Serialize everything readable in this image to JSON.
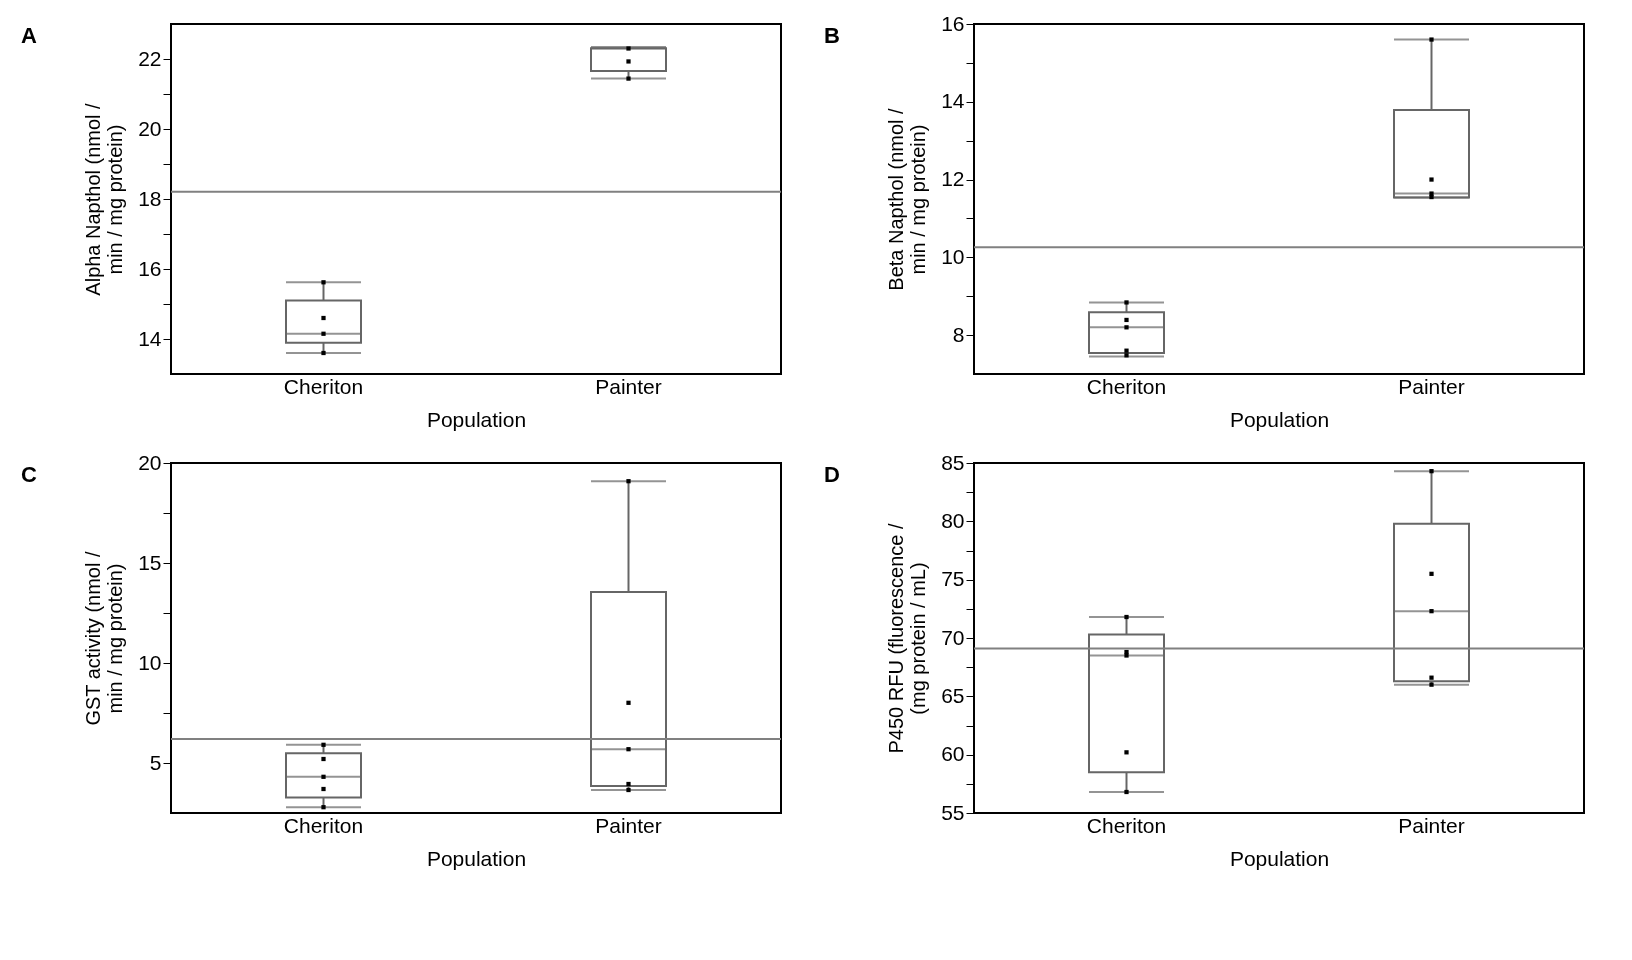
{
  "chart_data": [
    {
      "type": "box",
      "annotations": [
        "A"
      ],
      "xlabel": "Population",
      "ylabel": "Alpha Napthol (nmol / min / mg protein)",
      "categories": [
        "Cheriton",
        "Painter"
      ],
      "color": "#666666",
      "marker": "square",
      "boxes": [
        {
          "low": 13.6,
          "q1": 13.89,
          "median": 14.15,
          "q3": 15.1,
          "high": 15.62
        },
        {
          "low": 21.44,
          "q1": 21.66,
          "median": 22.3,
          "q3": 22.31,
          "high": 22.34
        }
      ],
      "series": [
        {
          "type": "scatter",
          "color": "#000000",
          "x": [
            "Cheriton",
            "Cheriton",
            "Cheriton",
            "Cheriton",
            "Painter",
            "Painter",
            "Painter"
          ],
          "values": [
            15.62,
            14.6,
            14.15,
            13.6,
            22.3,
            21.93,
            21.44
          ]
        }
      ],
      "ref_lines": [
        {
          "axis": "y",
          "value": 18.21,
          "color": "#808080"
        }
      ],
      "ylim": [
        13,
        23
      ],
      "yticks": [
        14,
        {
          "value": 15,
          "label": null
        },
        16,
        {
          "value": 17,
          "label": null
        },
        18,
        {
          "value": 19,
          "label": null
        },
        20,
        {
          "value": 21,
          "label": null
        },
        22
      ],
      "grid": false
    },
    {
      "type": "box",
      "annotations": [
        "B"
      ],
      "xlabel": "Population",
      "ylabel": "Beta Napthol (nmol / min / mg protein)",
      "categories": [
        "Cheriton",
        "Painter"
      ],
      "color": "#666666",
      "marker": "square",
      "boxes": [
        {
          "low": 7.45,
          "q1": 7.54,
          "median": 8.2,
          "q3": 8.59,
          "high": 8.84
        },
        {
          "low": 11.54,
          "q1": 11.54,
          "median": 11.64,
          "q3": 13.79,
          "high": 15.6
        }
      ],
      "series": [
        {
          "type": "scatter",
          "color": "#000000",
          "x": [
            "Cheriton",
            "Cheriton",
            "Cheriton",
            "Cheriton",
            "Cheriton",
            "Painter",
            "Painter",
            "Painter",
            "Painter"
          ],
          "values": [
            8.84,
            8.39,
            8.2,
            7.6,
            7.48,
            15.6,
            12.0,
            11.64,
            11.55
          ]
        }
      ],
      "ref_lines": [
        {
          "axis": "y",
          "value": 10.26,
          "color": "#808080"
        }
      ],
      "ylim": [
        7,
        16
      ],
      "yticks": [
        8,
        {
          "value": 9,
          "label": null
        },
        10,
        {
          "value": 11,
          "label": null
        },
        12,
        {
          "value": 13,
          "label": null
        },
        14,
        {
          "value": 15,
          "label": null
        },
        16
      ],
      "grid": false
    },
    {
      "type": "box",
      "annotations": [
        "C"
      ],
      "xlabel": "Population",
      "ylabel": "GST activity (nmol / min / mg protein)",
      "categories": [
        "Cheriton",
        "Painter"
      ],
      "color": "#666666",
      "marker": "square",
      "boxes": [
        {
          "low": 2.79,
          "q1": 3.28,
          "median": 4.31,
          "q3": 5.49,
          "high": 5.91
        },
        {
          "low": 3.65,
          "q1": 3.85,
          "median": 5.69,
          "q3": 13.55,
          "high": 19.09
        }
      ],
      "series": [
        {
          "type": "scatter",
          "color": "#000000",
          "x": [
            "Cheriton",
            "Cheriton",
            "Cheriton",
            "Cheriton",
            "Cheriton",
            "Painter",
            "Painter",
            "Painter",
            "Painter",
            "Painter"
          ],
          "values": [
            5.91,
            5.2,
            4.31,
            3.7,
            2.79,
            19.09,
            8.01,
            5.69,
            3.95,
            3.65
          ]
        }
      ],
      "ref_lines": [
        {
          "axis": "y",
          "value": 6.2,
          "color": "#808080"
        }
      ],
      "ylim": [
        2.5,
        20
      ],
      "yticks": [
        5,
        {
          "value": 7.5,
          "label": null
        },
        10,
        {
          "value": 12.5,
          "label": null
        },
        15,
        {
          "value": 17.5,
          "label": null
        },
        20
      ],
      "grid": false
    },
    {
      "type": "box",
      "annotations": [
        "D"
      ],
      "xlabel": "Population",
      "ylabel": "P450 RFU (fluorescence / (mg protein / mL)",
      "categories": [
        "Cheriton",
        "Painter"
      ],
      "color": "#666666",
      "marker": "square",
      "boxes": [
        {
          "low": 56.8,
          "q1": 58.5,
          "median": 68.5,
          "q3": 70.3,
          "high": 71.8
        },
        {
          "low": 66.0,
          "q1": 66.3,
          "median": 72.3,
          "q3": 79.8,
          "high": 84.3
        }
      ],
      "series": [
        {
          "type": "scatter",
          "color": "#000000",
          "x": [
            "Cheriton",
            "Cheriton",
            "Cheriton",
            "Cheriton",
            "Cheriton",
            "Painter",
            "Painter",
            "Painter",
            "Painter",
            "Painter"
          ],
          "values": [
            71.8,
            68.8,
            68.5,
            60.2,
            56.8,
            84.3,
            75.5,
            72.3,
            66.6,
            66.0
          ]
        }
      ],
      "ref_lines": [
        {
          "axis": "y",
          "value": 69.1,
          "color": "#808080"
        }
      ],
      "ylim": [
        55,
        85
      ],
      "yticks": [
        55,
        {
          "value": 57.5,
          "label": null
        },
        60,
        {
          "value": 62.5,
          "label": null
        },
        65,
        {
          "value": 67.5,
          "label": null
        },
        70,
        {
          "value": 72.5,
          "label": null
        },
        75,
        {
          "value": 77.5,
          "label": null
        },
        80,
        {
          "value": 82.5,
          "label": null
        },
        85
      ],
      "grid": false
    }
  ]
}
